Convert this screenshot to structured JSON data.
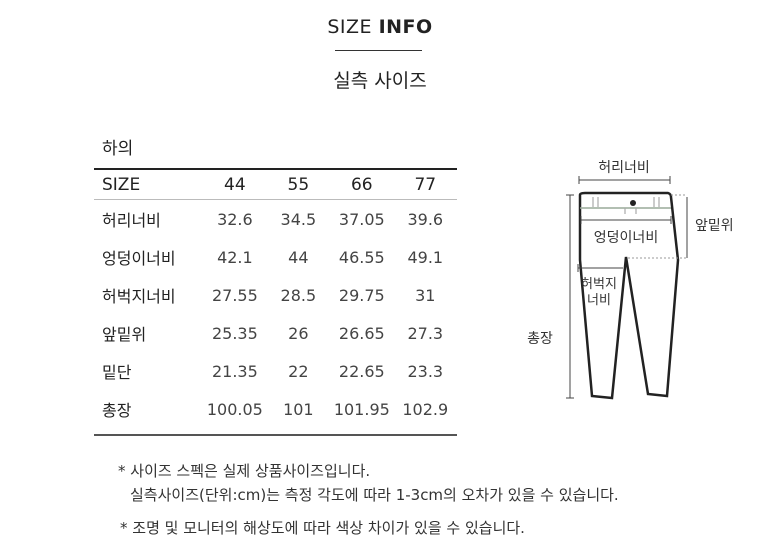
{
  "header": {
    "title_light": "SIZE",
    "title_bold": "INFO",
    "subtitle": "실측 사이즈"
  },
  "table": {
    "category": "하의",
    "columns": [
      "SIZE",
      "44",
      "55",
      "66",
      "77"
    ],
    "rows": [
      {
        "label": "허리너비",
        "values": [
          "32.6",
          "34.5",
          "37.05",
          "39.6"
        ]
      },
      {
        "label": "엉덩이너비",
        "values": [
          "42.1",
          "44",
          "46.55",
          "49.1"
        ]
      },
      {
        "label": "허벅지너비",
        "values": [
          "27.55",
          "28.5",
          "29.75",
          "31"
        ]
      },
      {
        "label": "앞밑위",
        "values": [
          "25.35",
          "26",
          "26.65",
          "27.3"
        ]
      },
      {
        "label": "밑단",
        "values": [
          "21.35",
          "22",
          "22.65",
          "23.3"
        ]
      },
      {
        "label": "총장",
        "values": [
          "100.05",
          "101",
          "101.95",
          "102.9"
        ]
      }
    ]
  },
  "diagram": {
    "waist": "허리너비",
    "rise": "앞밑위",
    "hip": "엉덩이너비",
    "thigh_1": "허벅지",
    "thigh_2": "너비",
    "length": "총장"
  },
  "notes": [
    "* 사이즈 스펙은 실제 상품사이즈입니다.",
    "실측사이즈(단위:cm)는 측정 각도에 따라 1-3cm의 오차가 있을 수 있습니다.",
    "* 조명 및 모니터의 해상도에 따라 색상 차이가 있을 수 있습니다."
  ]
}
